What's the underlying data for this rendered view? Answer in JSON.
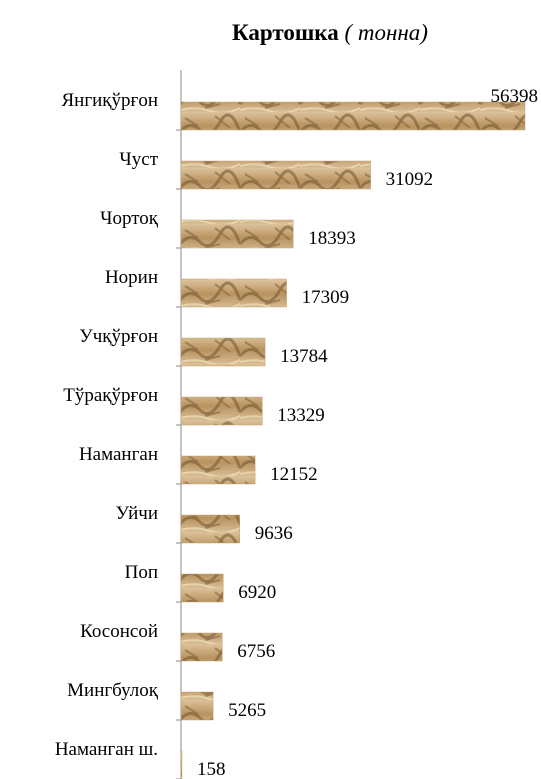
{
  "chart_data": {
    "type": "bar",
    "orientation": "horizontal",
    "title": "Картошка",
    "subtitle": "( тонна)",
    "categories": [
      "Янгиқўрғон",
      "Чуст",
      "Чортоқ",
      "Норин",
      "Учқўрғон",
      "Тўрақўрғон",
      "Наманган",
      "Уйчи",
      "Поп",
      "Косонсой",
      "Мингбулоқ",
      "Наманган ш."
    ],
    "values": [
      56398,
      31092,
      18393,
      17309,
      13784,
      13329,
      12152,
      9636,
      6920,
      6756,
      5265,
      158
    ],
    "color": "#c4a274"
  }
}
